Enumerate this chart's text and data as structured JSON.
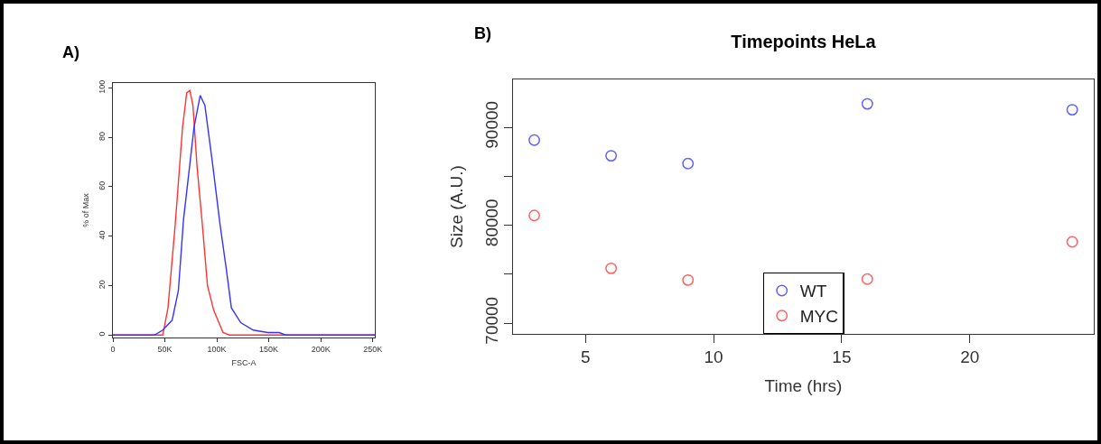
{
  "chart_data": [
    {
      "type": "line",
      "xlabel": "FSC-A",
      "ylabel": "% of Max",
      "annotations": [
        "A)"
      ],
      "xlim": [
        0,
        252000
      ],
      "ylim": [
        -1,
        102
      ],
      "xticks": [
        0,
        {
          "value": 50000,
          "label": "50K"
        },
        {
          "value": 100000,
          "label": "100K"
        },
        {
          "value": 150000,
          "label": "150K"
        },
        {
          "value": 200000,
          "label": "200K"
        },
        {
          "value": 250000,
          "label": "250K"
        }
      ],
      "yticks": [
        0,
        20,
        40,
        60,
        80,
        100
      ],
      "series": [
        {
          "color": "#ff3333",
          "x": [
            0,
            46000,
            48000,
            53000,
            60000,
            67000,
            71000,
            74000,
            77000,
            81000,
            86000,
            91000,
            97000,
            106000,
            112000,
            130000,
            252000
          ],
          "values": [
            0,
            0,
            0,
            11,
            45,
            84,
            98,
            99,
            93,
            68,
            45,
            20,
            10,
            1,
            0,
            0,
            0
          ]
        },
        {
          "color": "#3333ff",
          "x": [
            0,
            38000,
            40000,
            48000,
            57000,
            63000,
            68000,
            74000,
            78000,
            84000,
            88500,
            96000,
            103000,
            109000,
            114000,
            123000,
            135000,
            149000,
            160000,
            166000,
            252000
          ],
          "values": [
            0,
            0,
            0,
            2,
            6,
            18,
            47,
            69,
            84,
            97,
            93,
            69,
            45,
            27,
            11,
            5,
            2,
            1,
            1,
            0,
            0
          ]
        }
      ]
    },
    {
      "type": "scatter",
      "title": "Timepoints HeLa",
      "xlabel": "Time (hrs)",
      "ylabel": "Size (A.U.)",
      "annotations": [
        "B)"
      ],
      "marker": "circle",
      "legend": "bottom",
      "x": [
        3,
        6,
        9,
        16,
        24
      ],
      "xlim": [
        2.17,
        24.84
      ],
      "ylim": [
        68900,
        94900
      ],
      "xticks": [
        5,
        10,
        15,
        20
      ],
      "yticks": [
        70000,
        {
          "value": 75000,
          "label": null
        },
        80000,
        {
          "value": 85000,
          "label": null
        },
        90000
      ],
      "series": [
        {
          "name": "WT",
          "color": "#6060ff",
          "values": [
            88700,
            87100,
            86300,
            92400,
            91800
          ]
        },
        {
          "name": "MYC",
          "color": "#ff6060",
          "values": [
            81000,
            75600,
            74400,
            74500,
            78300
          ]
        }
      ]
    }
  ]
}
